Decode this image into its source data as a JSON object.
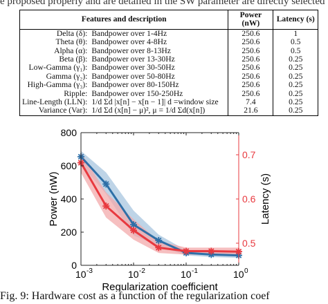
{
  "header_fragment": "e proposed properly and are detailed in the SW parameter are directly selected",
  "table": {
    "headers": [
      "Features and description",
      "Power (nW)",
      "Latency (s)"
    ],
    "rows": [
      {
        "name": "Delta (δ):",
        "desc": "Bandpower over 1-4Hz",
        "power": "250.6",
        "latency": "1"
      },
      {
        "name": "Theta (θ):",
        "desc": "Bandpower over 4-8Hz",
        "power": "250.6",
        "latency": "0.5"
      },
      {
        "name": "Alpha (α):",
        "desc": "Bandpower over 8-13Hz",
        "power": "250.6",
        "latency": "0.5"
      },
      {
        "name": "Beta (β):",
        "desc": "Bandpower over 13-30Hz",
        "power": "250.6",
        "latency": "0.25"
      },
      {
        "name": "Low-Gamma (γ₁):",
        "desc": "Bandpower over 30-50Hz",
        "power": "250.6",
        "latency": "0.25"
      },
      {
        "name": "Gamma (γ₂):",
        "desc": "Bandpower over 50-80Hz",
        "power": "250.6",
        "latency": "0.25"
      },
      {
        "name": "High-Gamma (γ₃):",
        "desc": "Bandpower over 80-150Hz",
        "power": "250.6",
        "latency": "0.25"
      },
      {
        "name": "Ripple:",
        "desc": "Bandpower over 150-250Hz",
        "power": "250.6",
        "latency": "0.25"
      },
      {
        "name": "Line-Length (LLN):",
        "desc": "1/d Σd |x[n] − x[n − 1]| d =window size",
        "power": "7.4",
        "latency": "0.25"
      },
      {
        "name": "Variance (Var):",
        "desc": "1/d Σd (x[n] − μ)², μ = 1/d Σd(x[n])",
        "power": "21.6",
        "latency": "0.25"
      }
    ]
  },
  "chart_data": {
    "type": "line",
    "xlabel": "Regularization coefficient",
    "ylabel_left": "Power (nW)",
    "ylabel_right": "Latency (s)",
    "x_scale": "log",
    "xlim": [
      0.001,
      1
    ],
    "ylim_left": [
      0,
      800
    ],
    "ylim_right": [
      0.45,
      0.75
    ],
    "x_ticks": [
      0.001,
      0.01,
      0.1,
      1
    ],
    "x_tick_labels": [
      "10",
      "10",
      "10",
      "10"
    ],
    "x_tick_exponents": [
      "-3",
      "-2",
      "-1",
      "0"
    ],
    "y_left_ticks": [
      "0",
      "200",
      "400",
      "600",
      "800"
    ],
    "y_right_ticks": [
      "0.5",
      "0.6",
      "0.7"
    ],
    "series": [
      {
        "axis": "left",
        "color": "#2e6fa7",
        "band_color": "#a8c6df",
        "x": [
          0.001,
          0.003,
          0.01,
          0.03,
          0.1,
          0.3,
          1
        ],
        "values": [
          655,
          490,
          245,
          150,
          75,
          65,
          60
        ],
        "upper": [
          690,
          560,
          330,
          185,
          90,
          80,
          75
        ],
        "lower": [
          610,
          430,
          180,
          115,
          60,
          50,
          45
        ]
      },
      {
        "axis": "right",
        "color": "#e8393f",
        "band_color": "#f3a9ab",
        "x": [
          0.001,
          0.003,
          0.01,
          0.03,
          0.1,
          0.3,
          1
        ],
        "values": [
          0.682,
          0.584,
          0.529,
          0.49,
          0.482,
          0.482,
          0.481
        ],
        "upper": [
          0.705,
          0.615,
          0.554,
          0.505,
          0.49,
          0.49,
          0.49
        ],
        "lower": [
          0.659,
          0.558,
          0.508,
          0.478,
          0.474,
          0.474,
          0.474
        ]
      }
    ]
  },
  "caption": "Fig. 9: Hardware cost as a function of the regularization coef"
}
